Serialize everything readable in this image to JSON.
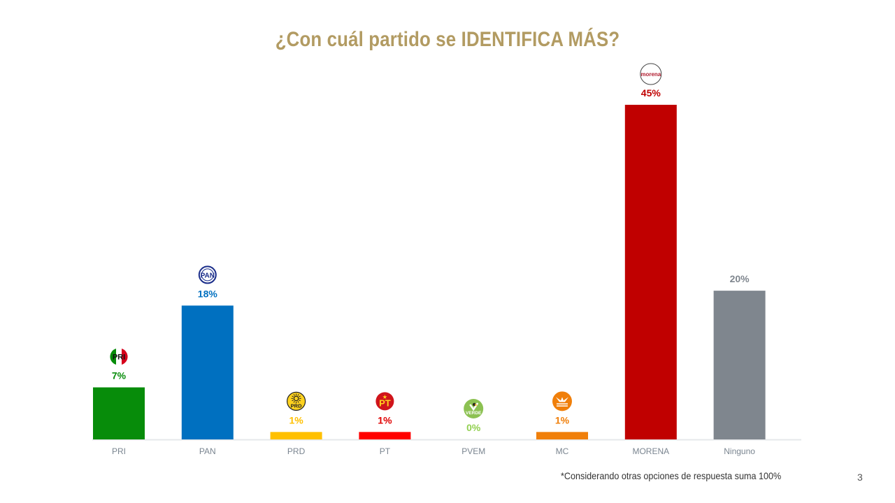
{
  "slide": {
    "title": "¿Con cuál partido se IDENTIFICA MÁS?",
    "footnote": "*Considerando otras opciones de respuesta suma 100%",
    "page_number": "3"
  },
  "chart_data": {
    "type": "bar",
    "title": "¿Con cuál partido se IDENTIFICA MÁS?",
    "xlabel": "",
    "ylabel": "",
    "ylim": [
      0,
      45
    ],
    "grid": false,
    "legend": "none",
    "categories": [
      "PRI",
      "PAN",
      "PRD",
      "PT",
      "PVEM",
      "MC",
      "MORENA",
      "Ninguno"
    ],
    "values": [
      7,
      18,
      1,
      1,
      0,
      1,
      45,
      20
    ],
    "value_labels": [
      "7%",
      "18%",
      "1%",
      "1%",
      "0%",
      "1%",
      "45%",
      "20%"
    ],
    "colors": [
      "#078c0a",
      "#0070c0",
      "#ffc000",
      "#ff0000",
      "#92d050",
      "#f07f0a",
      "#c00000",
      "#7f868e"
    ],
    "label_colors": [
      "#078c0a",
      "#0070c0",
      "#ffc000",
      "#e00000",
      "#92d050",
      "#f07f0a",
      "#c00000",
      "#7f868e"
    ],
    "logos": [
      "pri-logo",
      "pan-logo",
      "prd-logo",
      "pt-logo",
      "pvem-logo",
      "mc-logo",
      "morena-logo",
      null
    ],
    "logo_text": [
      "PRI",
      "PAN",
      "PRD",
      "PT",
      "VERDE",
      "",
      "morena",
      null
    ]
  }
}
